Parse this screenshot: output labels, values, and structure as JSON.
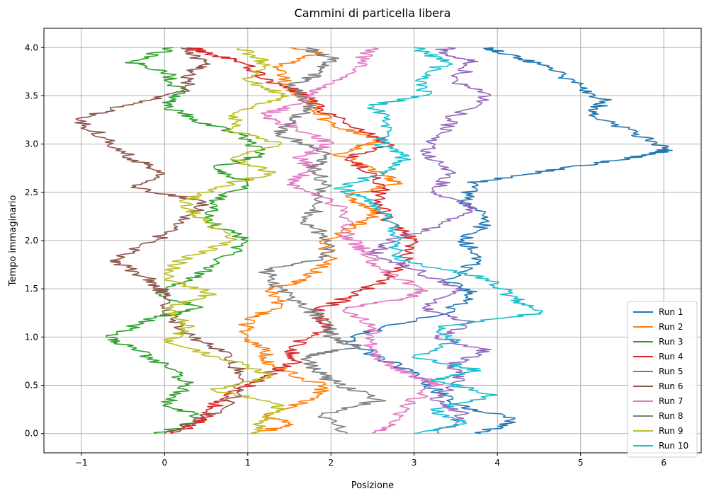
{
  "chart_data": {
    "type": "line",
    "title": "Cammini di particella libera",
    "xlabel": "Posizione",
    "ylabel": "Tempo immaginario",
    "xlim": [
      -1.45,
      6.45
    ],
    "ylim": [
      -0.2,
      4.2
    ],
    "xticks": [
      -1,
      0,
      1,
      2,
      3,
      4,
      5,
      6
    ],
    "xtick_labels": [
      "−1",
      "0",
      "1",
      "2",
      "3",
      "4",
      "5",
      "6"
    ],
    "yticks": [
      0.0,
      0.5,
      1.0,
      1.5,
      2.0,
      2.5,
      3.0,
      3.5,
      4.0
    ],
    "ytick_labels": [
      "0.0",
      "0.5",
      "1.0",
      "1.5",
      "2.0",
      "2.5",
      "3.0",
      "3.5",
      "4.0"
    ],
    "grid": true,
    "legend_position": "lower-right",
    "series": [
      {
        "name": "Run 1",
        "color": "#1f77b4",
        "points": [
          [
            3.8,
            0.0
          ],
          [
            4.2,
            0.15
          ],
          [
            3.5,
            0.3
          ],
          [
            3.2,
            0.5
          ],
          [
            2.8,
            0.7
          ],
          [
            2.2,
            0.95
          ],
          [
            2.6,
            1.1
          ],
          [
            3.4,
            1.25
          ],
          [
            3.7,
            1.45
          ],
          [
            3.4,
            1.6
          ],
          [
            3.8,
            1.8
          ],
          [
            3.6,
            2.0
          ],
          [
            3.9,
            2.2
          ],
          [
            3.6,
            2.4
          ],
          [
            3.7,
            2.6
          ],
          [
            4.3,
            2.68
          ],
          [
            5.2,
            2.8
          ],
          [
            5.9,
            2.9
          ],
          [
            6.05,
            2.95
          ],
          [
            5.7,
            3.1
          ],
          [
            5.1,
            3.3
          ],
          [
            5.3,
            3.45
          ],
          [
            5.0,
            3.6
          ],
          [
            4.6,
            3.8
          ],
          [
            4.0,
            3.95
          ],
          [
            3.9,
            4.0
          ]
        ]
      },
      {
        "name": "Run 2",
        "color": "#ff7f0e",
        "points": [
          [
            1.1,
            0.0
          ],
          [
            1.5,
            0.1
          ],
          [
            1.2,
            0.2
          ],
          [
            1.8,
            0.35
          ],
          [
            1.9,
            0.5
          ],
          [
            1.3,
            0.7
          ],
          [
            1.2,
            0.85
          ],
          [
            1.0,
            1.0
          ],
          [
            1.0,
            1.2
          ],
          [
            1.4,
            1.3
          ],
          [
            1.3,
            1.5
          ],
          [
            1.7,
            1.6
          ],
          [
            2.0,
            1.8
          ],
          [
            1.9,
            2.0
          ],
          [
            2.3,
            2.15
          ],
          [
            2.6,
            2.3
          ],
          [
            2.2,
            2.45
          ],
          [
            2.8,
            2.6
          ],
          [
            2.5,
            2.75
          ],
          [
            2.1,
            2.9
          ],
          [
            2.6,
            3.05
          ],
          [
            2.0,
            3.2
          ],
          [
            1.8,
            3.4
          ],
          [
            1.5,
            3.6
          ],
          [
            1.3,
            3.8
          ],
          [
            1.9,
            3.95
          ],
          [
            1.5,
            4.0
          ]
        ]
      },
      {
        "name": "Run 3",
        "color": "#2ca02c",
        "points": [
          [
            -0.1,
            0.0
          ],
          [
            0.5,
            0.15
          ],
          [
            0.0,
            0.3
          ],
          [
            0.3,
            0.5
          ],
          [
            0.0,
            0.7
          ],
          [
            -0.4,
            0.9
          ],
          [
            -0.7,
            1.0
          ],
          [
            -0.1,
            1.2
          ],
          [
            0.4,
            1.3
          ],
          [
            -0.1,
            1.45
          ],
          [
            0.3,
            1.6
          ],
          [
            0.6,
            1.75
          ],
          [
            1.0,
            2.0
          ],
          [
            0.5,
            2.2
          ],
          [
            0.6,
            2.4
          ],
          [
            1.0,
            2.6
          ],
          [
            0.6,
            2.75
          ],
          [
            1.2,
            2.9
          ],
          [
            0.9,
            3.1
          ],
          [
            0.4,
            3.25
          ],
          [
            0.0,
            3.4
          ],
          [
            0.2,
            3.55
          ],
          [
            0.0,
            3.75
          ],
          [
            -0.4,
            3.85
          ],
          [
            0.1,
            4.0
          ]
        ]
      },
      {
        "name": "Run 4",
        "color": "#d62728",
        "points": [
          [
            0.1,
            0.0
          ],
          [
            0.5,
            0.15
          ],
          [
            0.6,
            0.3
          ],
          [
            0.9,
            0.45
          ],
          [
            1.2,
            0.6
          ],
          [
            1.6,
            0.75
          ],
          [
            1.5,
            0.9
          ],
          [
            2.0,
            1.1
          ],
          [
            1.8,
            1.25
          ],
          [
            2.3,
            1.45
          ],
          [
            2.7,
            1.6
          ],
          [
            2.9,
            1.8
          ],
          [
            3.0,
            2.0
          ],
          [
            2.7,
            2.2
          ],
          [
            2.6,
            2.4
          ],
          [
            2.6,
            2.65
          ],
          [
            2.2,
            2.85
          ],
          [
            2.7,
            3.0
          ],
          [
            2.4,
            3.15
          ],
          [
            1.9,
            3.35
          ],
          [
            1.7,
            3.5
          ],
          [
            1.3,
            3.65
          ],
          [
            0.9,
            3.85
          ],
          [
            0.5,
            3.95
          ],
          [
            0.3,
            4.0
          ]
        ]
      },
      {
        "name": "Run 5",
        "color": "#9467bd",
        "points": [
          [
            3.3,
            0.0
          ],
          [
            3.6,
            0.2
          ],
          [
            3.2,
            0.35
          ],
          [
            3.6,
            0.55
          ],
          [
            3.4,
            0.7
          ],
          [
            3.9,
            0.85
          ],
          [
            3.3,
            1.0
          ],
          [
            3.7,
            1.15
          ],
          [
            3.1,
            1.3
          ],
          [
            3.5,
            1.5
          ],
          [
            3.0,
            1.7
          ],
          [
            2.5,
            1.85
          ],
          [
            2.7,
            2.0
          ],
          [
            3.3,
            2.15
          ],
          [
            3.7,
            2.35
          ],
          [
            3.2,
            2.5
          ],
          [
            3.5,
            2.7
          ],
          [
            3.1,
            2.9
          ],
          [
            3.3,
            3.1
          ],
          [
            3.5,
            3.3
          ],
          [
            3.9,
            3.5
          ],
          [
            3.5,
            3.65
          ],
          [
            3.7,
            3.85
          ],
          [
            3.3,
            3.95
          ],
          [
            3.4,
            4.0
          ]
        ]
      },
      {
        "name": "Run 6",
        "color": "#8c564b",
        "points": [
          [
            0.0,
            0.0
          ],
          [
            0.8,
            0.3
          ],
          [
            0.9,
            0.6
          ],
          [
            0.8,
            0.8
          ],
          [
            0.3,
            1.0
          ],
          [
            0.1,
            1.2
          ],
          [
            0.0,
            1.4
          ],
          [
            -0.1,
            1.55
          ],
          [
            -0.4,
            1.7
          ],
          [
            -0.6,
            1.8
          ],
          [
            -0.1,
            2.0
          ],
          [
            0.2,
            2.2
          ],
          [
            0.5,
            2.4
          ],
          [
            -0.4,
            2.55
          ],
          [
            0.0,
            2.7
          ],
          [
            -0.4,
            2.85
          ],
          [
            -0.7,
            3.05
          ],
          [
            -1.05,
            3.25
          ],
          [
            -0.5,
            3.4
          ],
          [
            0.3,
            3.55
          ],
          [
            0.3,
            3.75
          ],
          [
            0.5,
            3.85
          ],
          [
            0.2,
            4.0
          ]
        ]
      },
      {
        "name": "Run 7",
        "color": "#e377c2",
        "points": [
          [
            2.5,
            0.0
          ],
          [
            2.7,
            0.1
          ],
          [
            2.9,
            0.3
          ],
          [
            3.3,
            0.5
          ],
          [
            3.0,
            0.6
          ],
          [
            2.6,
            0.75
          ],
          [
            2.5,
            0.9
          ],
          [
            2.5,
            1.1
          ],
          [
            2.2,
            1.3
          ],
          [
            2.9,
            1.4
          ],
          [
            3.1,
            1.5
          ],
          [
            2.6,
            1.7
          ],
          [
            2.4,
            1.9
          ],
          [
            2.2,
            2.05
          ],
          [
            2.2,
            2.3
          ],
          [
            1.9,
            2.45
          ],
          [
            1.5,
            2.6
          ],
          [
            1.8,
            2.75
          ],
          [
            1.6,
            2.85
          ],
          [
            2.0,
            3.0
          ],
          [
            1.6,
            3.15
          ],
          [
            1.2,
            3.3
          ],
          [
            1.7,
            3.45
          ],
          [
            1.9,
            3.6
          ],
          [
            2.3,
            3.8
          ],
          [
            2.5,
            4.0
          ]
        ]
      },
      {
        "name": "Run 8",
        "color": "#7f7f7f",
        "points": [
          [
            2.2,
            0.0
          ],
          [
            1.9,
            0.2
          ],
          [
            2.6,
            0.35
          ],
          [
            2.1,
            0.5
          ],
          [
            1.8,
            0.65
          ],
          [
            1.7,
            0.8
          ],
          [
            2.3,
            0.9
          ],
          [
            2.0,
            1.0
          ],
          [
            2.0,
            1.15
          ],
          [
            1.7,
            1.3
          ],
          [
            1.4,
            1.5
          ],
          [
            1.2,
            1.7
          ],
          [
            1.9,
            1.8
          ],
          [
            2.0,
            2.0
          ],
          [
            1.7,
            2.2
          ],
          [
            1.9,
            2.4
          ],
          [
            1.9,
            2.6
          ],
          [
            1.8,
            2.75
          ],
          [
            2.0,
            2.9
          ],
          [
            1.4,
            3.1
          ],
          [
            1.5,
            3.25
          ],
          [
            1.8,
            3.4
          ],
          [
            1.5,
            3.6
          ],
          [
            1.9,
            3.75
          ],
          [
            2.0,
            3.9
          ],
          [
            1.7,
            4.0
          ]
        ]
      },
      {
        "name": "Run 9",
        "color": "#bcbd22",
        "points": [
          [
            1.05,
            0.0
          ],
          [
            1.2,
            0.15
          ],
          [
            1.4,
            0.3
          ],
          [
            0.6,
            0.45
          ],
          [
            1.3,
            0.6
          ],
          [
            0.8,
            0.75
          ],
          [
            0.0,
            0.95
          ],
          [
            0.3,
            1.1
          ],
          [
            0.0,
            1.3
          ],
          [
            0.6,
            1.45
          ],
          [
            0.0,
            1.6
          ],
          [
            0.2,
            1.8
          ],
          [
            0.8,
            2.0
          ],
          [
            0.5,
            2.2
          ],
          [
            0.2,
            2.4
          ],
          [
            0.6,
            2.55
          ],
          [
            1.3,
            2.7
          ],
          [
            0.8,
            2.85
          ],
          [
            1.4,
            3.0
          ],
          [
            0.8,
            3.15
          ],
          [
            0.9,
            3.35
          ],
          [
            1.5,
            3.5
          ],
          [
            1.0,
            3.65
          ],
          [
            1.2,
            3.85
          ],
          [
            0.9,
            4.0
          ]
        ]
      },
      {
        "name": "Run 10",
        "color": "#17becf",
        "points": [
          [
            3.0,
            0.0
          ],
          [
            3.6,
            0.1
          ],
          [
            3.2,
            0.25
          ],
          [
            4.0,
            0.4
          ],
          [
            3.2,
            0.55
          ],
          [
            3.8,
            0.65
          ],
          [
            3.0,
            0.8
          ],
          [
            3.5,
            0.95
          ],
          [
            3.3,
            1.1
          ],
          [
            4.5,
            1.25
          ],
          [
            4.2,
            1.4
          ],
          [
            3.9,
            1.6
          ],
          [
            2.8,
            1.8
          ],
          [
            2.8,
            2.0
          ],
          [
            2.7,
            2.2
          ],
          [
            2.5,
            2.4
          ],
          [
            2.1,
            2.55
          ],
          [
            2.6,
            2.7
          ],
          [
            2.9,
            2.85
          ],
          [
            2.6,
            3.0
          ],
          [
            2.7,
            3.2
          ],
          [
            2.5,
            3.4
          ],
          [
            3.1,
            3.5
          ],
          [
            3.1,
            3.7
          ],
          [
            3.4,
            3.85
          ],
          [
            3.0,
            4.0
          ]
        ]
      }
    ]
  }
}
